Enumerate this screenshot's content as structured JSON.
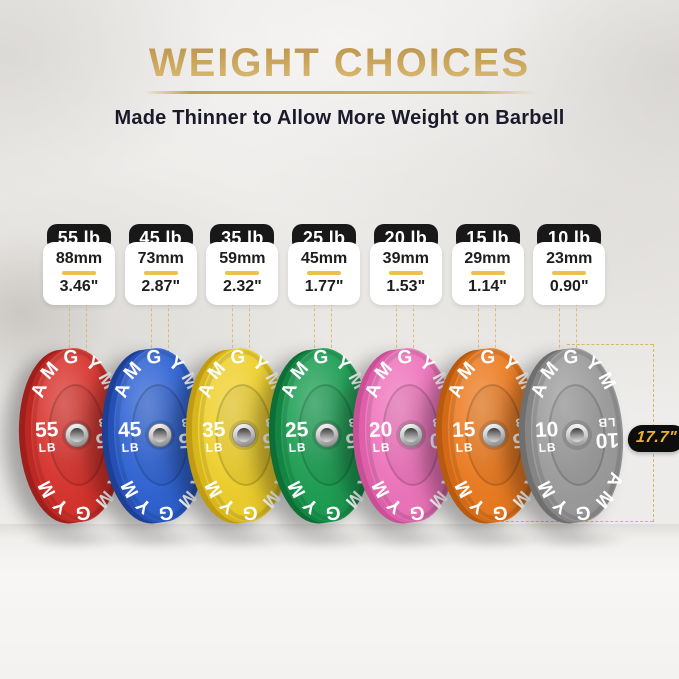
{
  "header": {
    "title": "WEIGHT CHOICES",
    "subtitle": "Made Thinner to Allow More Weight on Barbell"
  },
  "brand": "AMGYM",
  "diameter_label": "17.7\"",
  "plates": [
    {
      "name": "red",
      "badge_weight": "55 lb",
      "thickness_mm": "88mm",
      "thickness_in": "3.46\"",
      "num": "55",
      "unit": "LB",
      "face": "#d8332d",
      "rim": "#9e1f1c",
      "edge": "#bc2823"
    },
    {
      "name": "blue",
      "badge_weight": "45 lb",
      "thickness_mm": "73mm",
      "thickness_in": "2.87\"",
      "num": "45",
      "unit": "LB",
      "face": "#2f63d3",
      "rim": "#1d3f96",
      "edge": "#2650b4"
    },
    {
      "name": "yellow",
      "badge_weight": "35 lb",
      "thickness_mm": "59mm",
      "thickness_in": "2.32\"",
      "num": "35",
      "unit": "LB",
      "face": "#efd02c",
      "rim": "#bf9c14",
      "edge": "#d8b71e"
    },
    {
      "name": "green",
      "badge_weight": "25 lb",
      "thickness_mm": "45mm",
      "thickness_in": "1.77\"",
      "num": "25",
      "unit": "LB",
      "face": "#1d9e53",
      "rim": "#0e6f36",
      "edge": "#158544"
    },
    {
      "name": "pink",
      "badge_weight": "20 lb",
      "thickness_mm": "39mm",
      "thickness_in": "1.53\"",
      "num": "20",
      "unit": "LB",
      "face": "#ef74bc",
      "rim": "#c94f97",
      "edge": "#dd60a9"
    },
    {
      "name": "orange",
      "badge_weight": "15 lb",
      "thickness_mm": "29mm",
      "thickness_in": "1.14\"",
      "num": "15",
      "unit": "LB",
      "face": "#ec7b20",
      "rim": "#b85a10",
      "edge": "#d26a17"
    },
    {
      "name": "gray",
      "badge_weight": "10 lb",
      "thickness_mm": "23mm",
      "thickness_in": "0.90\"",
      "num": "10",
      "unit": "LB",
      "face": "#9c9c9c",
      "rim": "#6f6f6f",
      "edge": "#858585"
    }
  ],
  "colors": {
    "title_gold": "#c5a055",
    "dash_gold": "#d8b45c",
    "badge_bg": "#181818",
    "badge_text": "#ffffff",
    "value_text": "#1d1d1d",
    "divider_gold": "#eec04c",
    "diameter_badge_bg": "#0d0d0d",
    "diameter_badge_text": "#f1b32e",
    "plate_marking": "#ffffff"
  }
}
